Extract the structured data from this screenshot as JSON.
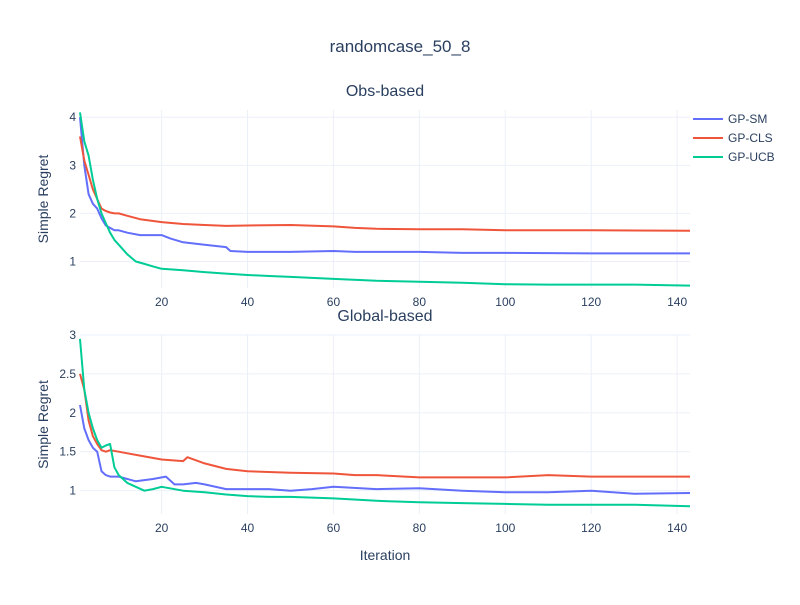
{
  "chart_data": {
    "type": "line",
    "title": "randomcase_50_8",
    "grid": true,
    "legend_position": "top-right",
    "legend": [
      {
        "name": "GP-SM",
        "color": "#636efa"
      },
      {
        "name": "GP-CLS",
        "color": "#EF553B"
      },
      {
        "name": "GP-UCB",
        "color": "#00cc96"
      }
    ],
    "subplots": [
      {
        "title": "Obs-based",
        "xlabel": "",
        "ylabel": "Simple Regret",
        "xlim": [
          1,
          143
        ],
        "ylim": [
          0.45,
          4.15
        ],
        "xticks": [
          20,
          40,
          60,
          80,
          100,
          120,
          140
        ],
        "yticks": [
          1,
          2,
          3,
          4
        ],
        "series": [
          {
            "name": "GP-SM",
            "color": "#636efa",
            "x": [
              1,
              2,
              3,
              4,
              5,
              6,
              7,
              8,
              9,
              10,
              12,
              15,
              20,
              22,
              25,
              30,
              35,
              36,
              40,
              50,
              60,
              65,
              70,
              80,
              90,
              100,
              120,
              143
            ],
            "y": [
              4.0,
              3.0,
              2.4,
              2.2,
              2.1,
              1.9,
              1.75,
              1.7,
              1.65,
              1.65,
              1.6,
              1.55,
              1.55,
              1.48,
              1.4,
              1.35,
              1.3,
              1.22,
              1.2,
              1.2,
              1.22,
              1.2,
              1.2,
              1.2,
              1.18,
              1.18,
              1.17,
              1.17
            ]
          },
          {
            "name": "GP-CLS",
            "color": "#EF553B",
            "x": [
              1,
              2,
              3,
              4,
              5,
              6,
              7,
              8,
              9,
              10,
              12,
              15,
              20,
              25,
              30,
              35,
              40,
              50,
              60,
              65,
              70,
              80,
              90,
              100,
              120,
              143
            ],
            "y": [
              3.6,
              3.1,
              2.8,
              2.5,
              2.3,
              2.1,
              2.05,
              2.02,
              2.0,
              2.0,
              1.95,
              1.88,
              1.82,
              1.78,
              1.76,
              1.74,
              1.75,
              1.76,
              1.73,
              1.7,
              1.68,
              1.67,
              1.67,
              1.65,
              1.65,
              1.64
            ]
          },
          {
            "name": "GP-UCB",
            "color": "#00cc96",
            "x": [
              1,
              2,
              3,
              4,
              5,
              6,
              7,
              8,
              9,
              10,
              12,
              14,
              16,
              18,
              20,
              25,
              30,
              35,
              40,
              45,
              50,
              60,
              70,
              80,
              90,
              100,
              110,
              120,
              130,
              143
            ],
            "y": [
              4.1,
              3.5,
              3.2,
              2.7,
              2.3,
              2.0,
              1.8,
              1.6,
              1.45,
              1.35,
              1.15,
              1.0,
              0.95,
              0.9,
              0.85,
              0.82,
              0.78,
              0.75,
              0.72,
              0.7,
              0.68,
              0.64,
              0.6,
              0.58,
              0.56,
              0.53,
              0.52,
              0.52,
              0.52,
              0.5
            ]
          }
        ]
      },
      {
        "title": "Global-based",
        "xlabel": "Iteration",
        "ylabel": "Simple Regret",
        "xlim": [
          1,
          143
        ],
        "ylim": [
          0.7,
          3.0
        ],
        "xticks": [
          20,
          40,
          60,
          80,
          100,
          120,
          140
        ],
        "yticks": [
          1,
          1.5,
          2,
          2.5,
          3
        ],
        "ytick_labels": [
          "1",
          "1.5",
          "2",
          "2.5",
          "3"
        ],
        "series": [
          {
            "name": "GP-SM",
            "color": "#636efa",
            "x": [
              1,
              2,
              3,
              4,
              5,
              6,
              7,
              8,
              10,
              14,
              18,
              21,
              23,
              25,
              28,
              30,
              35,
              40,
              45,
              50,
              55,
              60,
              70,
              80,
              90,
              100,
              110,
              120,
              130,
              143
            ],
            "y": [
              2.1,
              1.8,
              1.65,
              1.55,
              1.5,
              1.25,
              1.2,
              1.18,
              1.18,
              1.12,
              1.15,
              1.18,
              1.08,
              1.08,
              1.1,
              1.08,
              1.02,
              1.02,
              1.02,
              1.0,
              1.02,
              1.05,
              1.02,
              1.03,
              1.0,
              0.98,
              0.98,
              1.0,
              0.96,
              0.97
            ]
          },
          {
            "name": "GP-CLS",
            "color": "#EF553B",
            "x": [
              1,
              2,
              3,
              4,
              5,
              6,
              7,
              8,
              10,
              12,
              15,
              20,
              25,
              26,
              30,
              35,
              40,
              50,
              60,
              65,
              70,
              80,
              90,
              100,
              110,
              120,
              130,
              143
            ],
            "y": [
              2.5,
              2.3,
              1.9,
              1.7,
              1.6,
              1.52,
              1.5,
              1.52,
              1.5,
              1.48,
              1.45,
              1.4,
              1.38,
              1.43,
              1.35,
              1.28,
              1.25,
              1.23,
              1.22,
              1.2,
              1.2,
              1.17,
              1.17,
              1.17,
              1.2,
              1.18,
              1.18,
              1.18
            ]
          },
          {
            "name": "GP-UCB",
            "color": "#00cc96",
            "x": [
              1,
              2,
              3,
              4,
              5,
              6,
              7,
              8,
              9,
              10,
              12,
              14,
              16,
              18,
              20,
              25,
              30,
              35,
              40,
              45,
              50,
              60,
              70,
              80,
              90,
              100,
              110,
              120,
              130,
              143
            ],
            "y": [
              2.95,
              2.3,
              2.0,
              1.8,
              1.65,
              1.55,
              1.58,
              1.6,
              1.3,
              1.2,
              1.1,
              1.05,
              1.0,
              1.02,
              1.05,
              1.0,
              0.98,
              0.95,
              0.93,
              0.92,
              0.92,
              0.9,
              0.87,
              0.85,
              0.84,
              0.83,
              0.82,
              0.82,
              0.82,
              0.8
            ]
          }
        ]
      }
    ]
  }
}
